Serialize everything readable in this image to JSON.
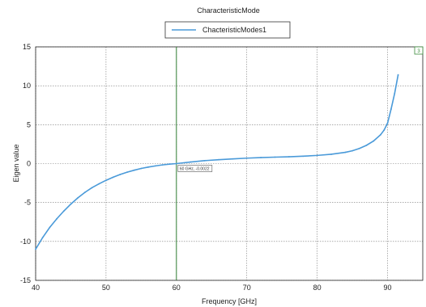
{
  "chart_data": {
    "type": "line",
    "title": "CharacteristicMode",
    "xlabel": "Frequency [GHz]",
    "ylabel": "Eigen value",
    "xlim": [
      40,
      95
    ],
    "ylim": [
      -15,
      15
    ],
    "xticks": [
      40,
      50,
      60,
      70,
      80,
      90
    ],
    "yticks": [
      15,
      10,
      5,
      0,
      -5,
      -10,
      -15
    ],
    "grid": true,
    "legend_position": "top",
    "series": [
      {
        "name": "ChacteristicModes1",
        "color": "#4a9ad9",
        "x": [
          40,
          41,
          42,
          43,
          44,
          45,
          46,
          47,
          48,
          49,
          50,
          51,
          52,
          53,
          54,
          55,
          56,
          57,
          58,
          59,
          60,
          62,
          64,
          66,
          68,
          70,
          72,
          74,
          76,
          78,
          80,
          82,
          84,
          85,
          86,
          87,
          88,
          89,
          89.5,
          90,
          90.5,
          91,
          91.5
        ],
        "y": [
          -11,
          -9.5,
          -8.2,
          -7.1,
          -6.1,
          -5.2,
          -4.4,
          -3.7,
          -3.1,
          -2.6,
          -2.15,
          -1.75,
          -1.4,
          -1.1,
          -0.85,
          -0.62,
          -0.45,
          -0.3,
          -0.17,
          -0.07,
          0,
          0.2,
          0.38,
          0.5,
          0.6,
          0.7,
          0.77,
          0.83,
          0.88,
          0.95,
          1.05,
          1.2,
          1.45,
          1.65,
          1.95,
          2.35,
          2.9,
          3.7,
          4.3,
          5.2,
          7.0,
          9.0,
          11.4
        ]
      }
    ],
    "marker": {
      "x": 60,
      "label": "60 GHz, -0.0022",
      "color": "#2e7d32"
    },
    "corner_marker": "3"
  }
}
